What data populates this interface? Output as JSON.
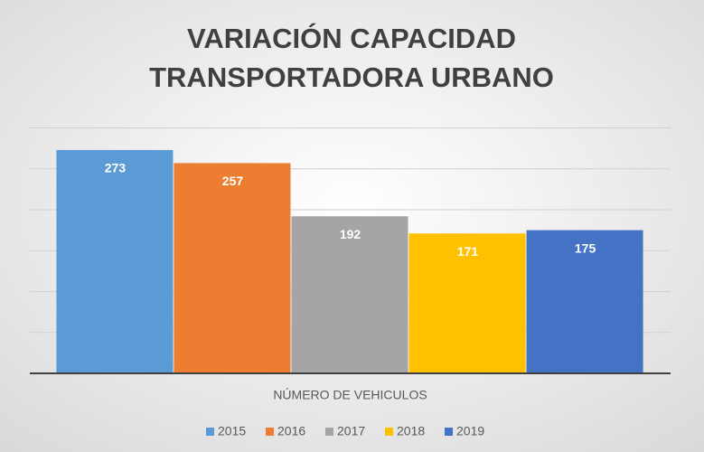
{
  "chart_data": {
    "type": "bar",
    "title": "VARIACIÓN CAPACIDAD TRANSPORTADORA URBANO",
    "categories": [
      "NÚMERO DE VEHICULOS"
    ],
    "series": [
      {
        "name": "2015",
        "color": "#5b9bd5",
        "values": [
          273
        ]
      },
      {
        "name": "2016",
        "color": "#ed7d31",
        "values": [
          257
        ]
      },
      {
        "name": "2017",
        "color": "#a5a5a5",
        "values": [
          192
        ]
      },
      {
        "name": "2018",
        "color": "#ffc000",
        "values": [
          171
        ]
      },
      {
        "name": "2019",
        "color": "#4472c4",
        "values": [
          175
        ]
      }
    ],
    "ylim": [
      0,
      300
    ],
    "yticks": [
      0,
      50,
      100,
      150,
      200,
      250,
      300
    ],
    "grid": true,
    "legend": "bottom"
  }
}
